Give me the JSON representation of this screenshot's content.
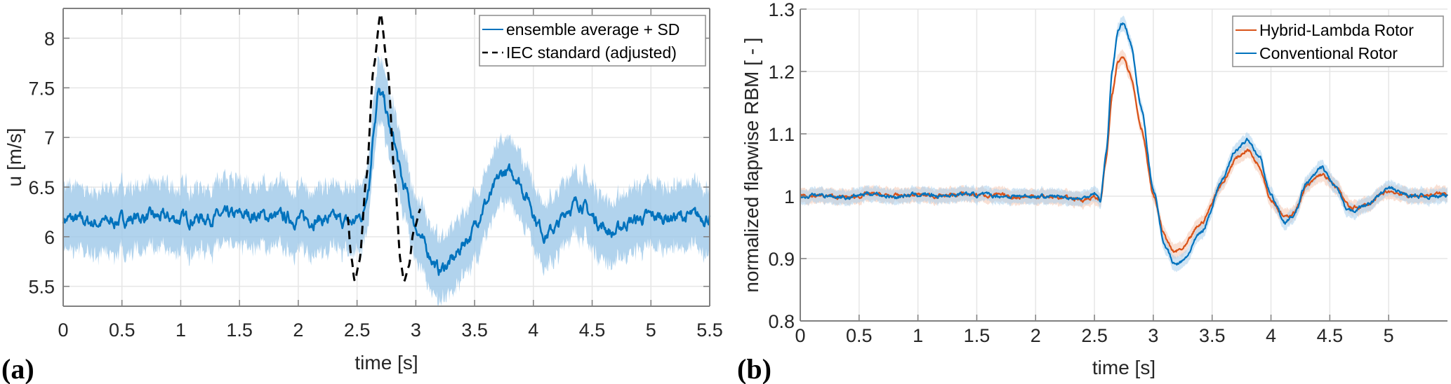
{
  "chart_data": [
    {
      "panel": "(a)",
      "type": "line",
      "xlabel": "time [s]",
      "ylabel": "u [m/s]",
      "xlim": [
        0,
        5.5
      ],
      "ylim": [
        5.3,
        8.3
      ],
      "xticks": [
        0,
        0.5,
        1,
        1.5,
        2,
        2.5,
        3,
        3.5,
        4,
        4.5,
        5,
        5.5
      ],
      "xtick_labels": [
        "0",
        "0.5",
        "1",
        "1.5",
        "2",
        "2.5",
        "3",
        "3.5",
        "4",
        "4.5",
        "5",
        "5.5"
      ],
      "yticks": [
        5.5,
        6,
        6.5,
        7,
        7.5,
        8
      ],
      "ytick_labels": [
        "5.5",
        "6",
        "6.5",
        "7",
        "7.5",
        "8"
      ],
      "grid": true,
      "legend_position": "top-right",
      "series": [
        {
          "name": "ensemble average + SD",
          "style": "solid",
          "color": "#0072BD",
          "band_color": "#9DC8E8",
          "sd": 0.3,
          "noise": 0.04,
          "x": [
            0,
            0.3,
            0.7,
            1.0,
            1.3,
            1.6,
            2.0,
            2.3,
            2.45,
            2.55,
            2.6,
            2.65,
            2.68,
            2.72,
            2.8,
            2.9,
            3.0,
            3.1,
            3.2,
            3.3,
            3.45,
            3.6,
            3.75,
            3.85,
            3.95,
            4.05,
            4.1,
            4.2,
            4.3,
            4.4,
            4.5,
            4.6,
            4.68,
            4.8,
            5.0,
            5.2,
            5.5
          ],
          "values": [
            6.18,
            6.14,
            6.2,
            6.18,
            6.2,
            6.22,
            6.18,
            6.17,
            6.14,
            6.22,
            6.55,
            7.2,
            7.45,
            7.38,
            7.0,
            6.5,
            6.1,
            5.85,
            5.66,
            5.75,
            6.0,
            6.35,
            6.65,
            6.62,
            6.4,
            6.12,
            6.02,
            6.1,
            6.3,
            6.35,
            6.2,
            6.1,
            6.03,
            6.15,
            6.2,
            6.2,
            6.2
          ]
        },
        {
          "name": "IEC standard (adjusted)",
          "style": "dashed",
          "color": "#000000",
          "x": [
            2.42,
            2.45,
            2.48,
            2.52,
            2.58,
            2.64,
            2.7,
            2.76,
            2.82,
            2.87,
            2.9,
            2.94,
            2.98,
            3.04
          ],
          "values": [
            6.2,
            5.8,
            5.55,
            5.75,
            6.6,
            7.7,
            8.25,
            7.7,
            6.6,
            5.75,
            5.55,
            5.7,
            6.05,
            6.28
          ]
        }
      ]
    },
    {
      "panel": "(b)",
      "type": "line",
      "xlabel": "time [s]",
      "ylabel": "normalized flapwise RBM [ - ]",
      "xlim": [
        0,
        5.5
      ],
      "ylim": [
        0.8,
        1.3
      ],
      "xticks": [
        0,
        0.5,
        1,
        1.5,
        2,
        2.5,
        3,
        3.5,
        4,
        4.5,
        5
      ],
      "xtick_labels": [
        "0",
        "0.5",
        "1",
        "1.5",
        "2",
        "2.5",
        "3",
        "3.5",
        "4",
        "4.5",
        "5"
      ],
      "yticks": [
        0.8,
        0.9,
        1,
        1.1,
        1.2,
        1.3
      ],
      "ytick_labels": [
        "0.8",
        "0.9",
        "1",
        "1.1",
        "1.2",
        "1.3"
      ],
      "grid": true,
      "legend_position": "top-right",
      "series": [
        {
          "name": "Hybrid-Lambda Rotor",
          "style": "solid",
          "color": "#D95319",
          "band_color": "#F4C7B0",
          "sd": 0.012,
          "noise": 0.002,
          "x": [
            0,
            0.2,
            0.4,
            0.6,
            0.8,
            1.0,
            1.2,
            1.4,
            1.6,
            1.8,
            2.0,
            2.2,
            2.4,
            2.5,
            2.55,
            2.6,
            2.65,
            2.7,
            2.75,
            2.8,
            2.9,
            3.0,
            3.1,
            3.17,
            3.25,
            3.4,
            3.6,
            3.7,
            3.8,
            3.9,
            4.0,
            4.12,
            4.2,
            4.3,
            4.43,
            4.55,
            4.68,
            4.8,
            5.0,
            5.2,
            5.5
          ],
          "values": [
            1.002,
            1.0,
            0.998,
            1.003,
            1.0,
            1.002,
            1.001,
            1.003,
            1.002,
            0.999,
            1.0,
            0.998,
            0.995,
            0.998,
            0.993,
            1.06,
            1.16,
            1.215,
            1.225,
            1.2,
            1.11,
            1.0,
            0.935,
            0.91,
            0.915,
            0.955,
            1.025,
            1.06,
            1.075,
            1.05,
            0.995,
            0.965,
            0.975,
            1.015,
            1.035,
            1.015,
            0.98,
            0.985,
            1.008,
            1.0,
            1.004
          ]
        },
        {
          "name": "Conventional Rotor",
          "style": "solid",
          "color": "#0072BD",
          "band_color": "#A9D0EC",
          "sd": 0.012,
          "noise": 0.002,
          "x": [
            0,
            0.2,
            0.4,
            0.6,
            0.8,
            1.0,
            1.2,
            1.4,
            1.6,
            1.8,
            2.0,
            2.2,
            2.4,
            2.5,
            2.55,
            2.6,
            2.65,
            2.7,
            2.75,
            2.8,
            2.9,
            3.0,
            3.1,
            3.18,
            3.25,
            3.4,
            3.6,
            3.7,
            3.8,
            3.9,
            4.0,
            4.12,
            4.2,
            4.3,
            4.43,
            4.55,
            4.65,
            4.8,
            5.0,
            5.2,
            5.5
          ],
          "values": [
            1.0,
            1.002,
            0.998,
            1.005,
            0.999,
            1.003,
            1.001,
            1.004,
            1.001,
            1.0,
            1.0,
            0.999,
            0.996,
            1.006,
            0.993,
            1.07,
            1.2,
            1.265,
            1.28,
            1.25,
            1.14,
            1.01,
            0.92,
            0.89,
            0.895,
            0.94,
            1.03,
            1.075,
            1.09,
            1.065,
            1.0,
            0.958,
            0.97,
            1.02,
            1.045,
            1.015,
            0.975,
            0.985,
            1.012,
            1.0,
            1.0
          ]
        }
      ]
    }
  ],
  "labels": {
    "panel_a": "(a)",
    "panel_b": "(b)"
  }
}
